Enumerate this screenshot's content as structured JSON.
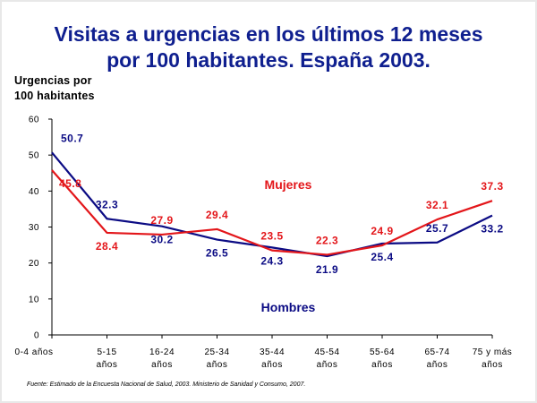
{
  "title_line1": "Visitas a urgencias en los últimos 12 meses",
  "title_line2": "por 100 habitantes. España 2003.",
  "source": "Fuente: Estimado de la Encuesta Nacional de Salud, 2003. Ministerio de Sanidad y Consumo, 2007.",
  "colors": {
    "hombres": "#0b0b84",
    "mujeres": "#e3161a",
    "title": "#0f1f8f"
  },
  "chart_data": {
    "type": "line",
    "title": "Visitas a urgencias en los últimos 12 meses por 100 habitantes. España 2003.",
    "ylabel_lines": [
      "Urgencias por",
      "100 habitantes"
    ],
    "xlabel": "",
    "ylim": [
      0,
      60
    ],
    "yticks": [
      0,
      10,
      20,
      30,
      40,
      50,
      60
    ],
    "grid": false,
    "categories": [
      [
        "0-4 años"
      ],
      [
        "5-15",
        "años"
      ],
      [
        "16-24",
        "años"
      ],
      [
        "25-34",
        "años"
      ],
      [
        "35-44",
        "años"
      ],
      [
        "45-54",
        "años"
      ],
      [
        "55-64",
        "años"
      ],
      [
        "65-74",
        "años"
      ],
      [
        "75 y más",
        "años"
      ]
    ],
    "series": [
      {
        "name": "Hombres",
        "color": "#0b0b84",
        "values": [
          50.7,
          32.3,
          30.2,
          26.5,
          24.3,
          21.9,
          25.4,
          25.7,
          33.2
        ]
      },
      {
        "name": "Mujeres",
        "color": "#e3161a",
        "values": [
          45.8,
          28.4,
          27.9,
          29.4,
          23.5,
          22.3,
          24.9,
          32.1,
          37.3
        ]
      }
    ]
  }
}
